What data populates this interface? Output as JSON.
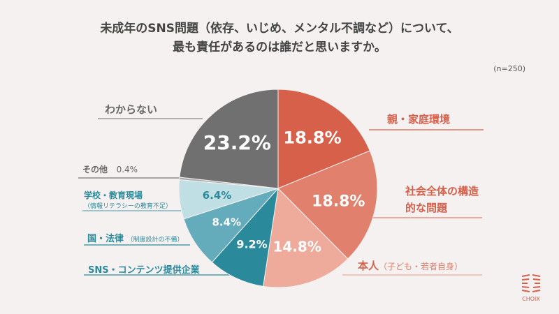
{
  "title_line1": "未成年のSNS問題（依存、いじめ、メンタル不調など）について、",
  "title_line2": "最も責任があるのは誰だと思いますか。",
  "sample_size": "(n=250)",
  "logo_text": "CHOIX",
  "chart_data": {
    "type": "pie",
    "start": "12 o'clock, clockwise",
    "slices": [
      {
        "label": "親・家庭環境",
        "sub": "",
        "value": 18.8,
        "text": "18.8%",
        "color": "#d6604a"
      },
      {
        "label": "社会全体の構造的な問題",
        "sub": "",
        "value": 18.8,
        "text": "18.8%",
        "color": "#e0806d"
      },
      {
        "label": "本人",
        "sub": "（子ども・若者自身）",
        "value": 14.8,
        "text": "14.8%",
        "color": "#eeaa9b"
      },
      {
        "label": "SNS・コンテンツ提供企業",
        "sub": "",
        "value": 9.2,
        "text": "9.2%",
        "color": "#2a8a9b"
      },
      {
        "label": "国・法律",
        "sub": "（制度設計の不備）",
        "value": 8.4,
        "text": "8.4%",
        "color": "#64abbb"
      },
      {
        "label": "学校・教育現場",
        "sub": "（情報リテラシーの教育不足）",
        "value": 6.4,
        "text": "6.4%",
        "color": "#bfdfe5"
      },
      {
        "label": "その他",
        "sub": "",
        "value": 0.4,
        "text": "0.4%",
        "color": "#aaaaaa"
      },
      {
        "label": "わからない",
        "sub": "",
        "value": 23.2,
        "text": "23.2%",
        "color": "#707070"
      }
    ]
  }
}
